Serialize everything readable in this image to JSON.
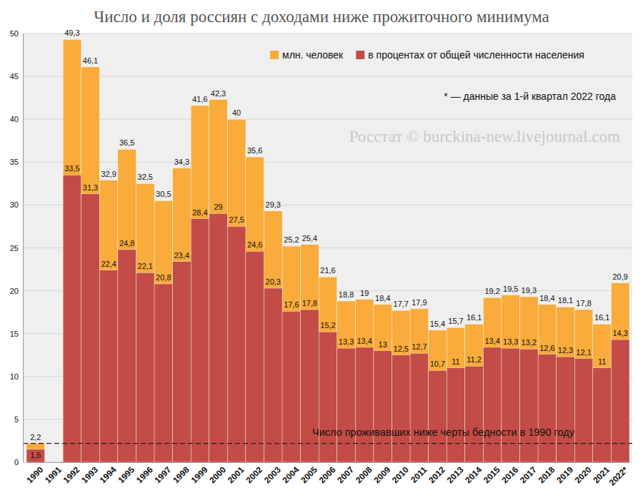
{
  "chart_data": {
    "type": "bar",
    "title": "Число и доля россиян с доходами ниже прожиточного минимума",
    "categories": [
      "1990",
      "1991",
      "1992",
      "1993",
      "1994",
      "1995",
      "1996",
      "1997",
      "1998",
      "1999",
      "2000",
      "2001",
      "2002",
      "2003",
      "2004",
      "2005",
      "2006",
      "2007",
      "2008",
      "2009",
      "2010",
      "2011",
      "2012",
      "2013",
      "2014",
      "2015",
      "2016",
      "2017",
      "2018",
      "2019",
      "2020",
      "2021",
      "2022*"
    ],
    "series": [
      {
        "name": "млн. человек",
        "color": "#f9ab3b",
        "values": [
          2.2,
          null,
          49.3,
          46.1,
          32.9,
          36.5,
          32.5,
          30.5,
          34.3,
          41.6,
          42.3,
          40,
          35.6,
          29.3,
          25.2,
          25.4,
          21.6,
          18.8,
          19,
          18.4,
          17.7,
          17.9,
          15.4,
          15.7,
          16.1,
          19.2,
          19.5,
          19.3,
          18.4,
          18.1,
          17.8,
          16.1,
          20.9
        ],
        "value_labels": [
          "2,2",
          null,
          "49,3",
          "46,1",
          "32,9",
          "36,5",
          "32,5",
          "30,5",
          "34,3",
          "41,6",
          "42,3",
          "40",
          "35,6",
          "29,3",
          "25,2",
          "25,4",
          "21,6",
          "18,8",
          "19",
          "18,4",
          "17,7",
          "17,9",
          "15,4",
          "15,7",
          "16,1",
          "19,2",
          "19,5",
          "19,3",
          "18,4",
          "18,1",
          "17,8",
          "16,1",
          "20,9"
        ]
      },
      {
        "name": "в процентах от общей численности населения",
        "color": "#c34c46",
        "values": [
          1.5,
          null,
          33.5,
          31.3,
          22.4,
          24.8,
          22.1,
          20.8,
          23.4,
          28.4,
          29,
          27.5,
          24.6,
          20.3,
          17.6,
          17.8,
          15.2,
          13.3,
          13.4,
          13,
          12.5,
          12.7,
          10.7,
          11,
          11.2,
          13.4,
          13.3,
          13.2,
          12.6,
          12.3,
          12.1,
          11,
          14.3
        ],
        "value_labels": [
          "1,5",
          null,
          "33,5",
          "31,3",
          "22,4",
          "24,8",
          "22,1",
          "20,8",
          "23,4",
          "28,4",
          "29",
          "27,5",
          "24,6",
          "20,3",
          "17,6",
          "17,8",
          "15,2",
          "13,3",
          "13,4",
          "13",
          "12,5",
          "12,7",
          "10,7",
          "11",
          "11,2",
          "13,4",
          "13,3",
          "13,2",
          "12,6",
          "12,3",
          "12,1",
          "11",
          "14,3"
        ]
      }
    ],
    "stacked": false,
    "data_labels": true,
    "ylim": [
      0,
      50
    ],
    "yticks": [
      0,
      5,
      10,
      15,
      20,
      25,
      30,
      35,
      40,
      45,
      50
    ],
    "grid": true,
    "legend": "top-right",
    "annotations": [
      {
        "text": "* — данные за 1-й квартал 2022 года"
      },
      {
        "text": "Росстат © burckina-new.livejournal.com"
      }
    ],
    "reference_line": {
      "value": 2.2,
      "label": "Число проживавших ниже черты бедности в 1990 году"
    }
  }
}
